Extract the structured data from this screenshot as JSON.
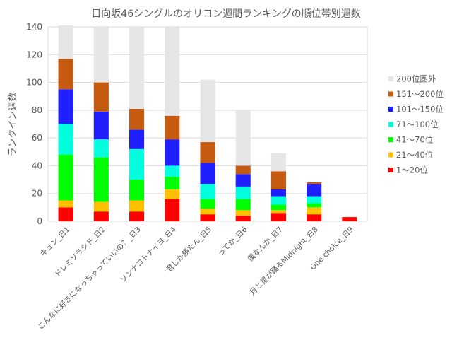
{
  "chart_data": {
    "type": "bar",
    "stacked": true,
    "title": "日向坂46シングルのオリコン週間ランキングの順位帯別週数",
    "xlabel": "",
    "ylabel": "ランクイン週数",
    "ylim": [
      0,
      140
    ],
    "yticks": [
      0,
      20,
      40,
      60,
      80,
      100,
      120,
      140
    ],
    "grid": true,
    "legend_position": "right",
    "categories": [
      "キュン_日1",
      "ドレミソラシド_日2",
      "こんなに好きになっちゃっていいの？_日3",
      "ソンナコトナイヨ_日4",
      "君しか勝たん_日5",
      "ってか_日6",
      "僕なんか_日7",
      "月と星が踊るMidnight_日8",
      "One choice_日9"
    ],
    "series": [
      {
        "name": "1〜20位",
        "color": "#ff0000",
        "values": [
          10,
          7,
          7,
          16,
          5,
          4,
          6,
          5,
          3
        ]
      },
      {
        "name": "21〜40位",
        "color": "#ffc000",
        "values": [
          5,
          7,
          8,
          7,
          4,
          4,
          2,
          5,
          0
        ]
      },
      {
        "name": "41〜70位",
        "color": "#00ff00",
        "values": [
          33,
          32,
          15,
          9,
          7,
          8,
          4,
          3,
          0
        ]
      },
      {
        "name": "71〜100位",
        "color": "#00ffdd",
        "values": [
          22,
          13,
          22,
          8,
          11,
          9,
          6,
          5,
          0
        ]
      },
      {
        "name": "101〜150位",
        "color": "#2020ff",
        "values": [
          25,
          20,
          14,
          19,
          15,
          9,
          5,
          9,
          0
        ]
      },
      {
        "name": "151〜200位",
        "color": "#c55a11",
        "values": [
          22,
          21,
          15,
          17,
          15,
          6,
          13,
          1,
          0
        ]
      },
      {
        "name": "200位圏外",
        "color": "#e7e6e6",
        "values": [
          24,
          40,
          59,
          64,
          45,
          40,
          13,
          0,
          0
        ]
      }
    ]
  }
}
